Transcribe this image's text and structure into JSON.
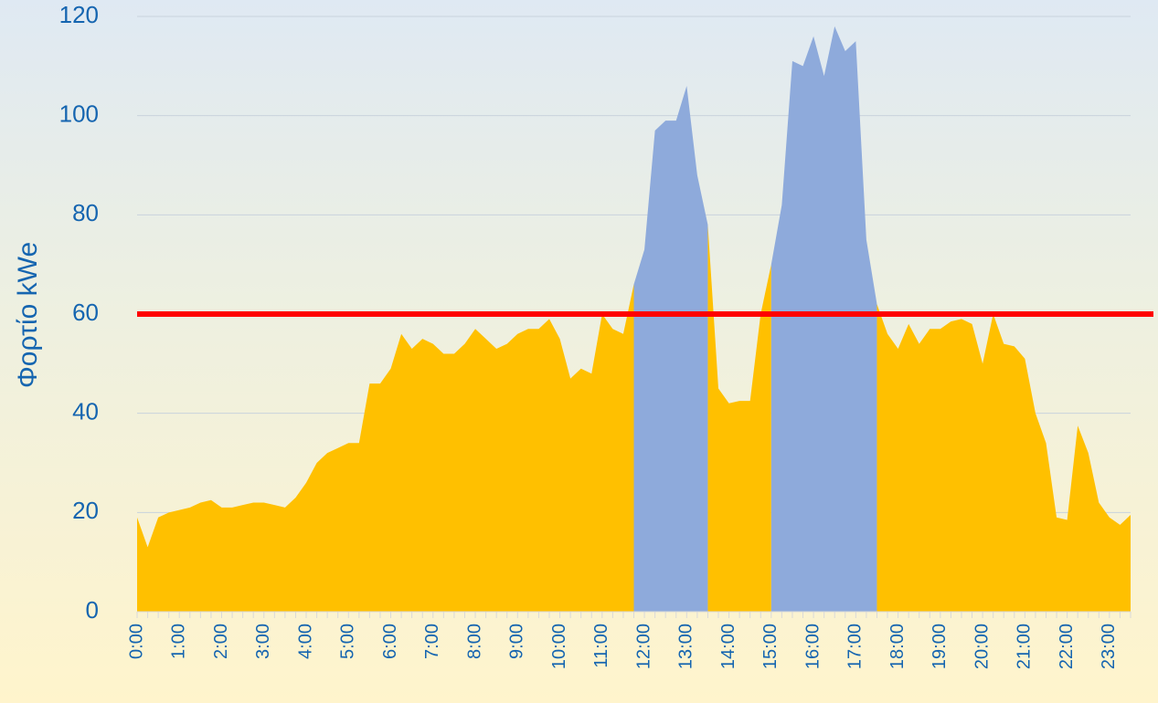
{
  "chart_data": {
    "type": "area",
    "y_label": "Φορτίο kWe",
    "categories": [
      "0:00",
      null,
      null,
      null,
      "1:00",
      null,
      null,
      null,
      "2:00",
      null,
      null,
      null,
      "3:00",
      null,
      null,
      null,
      "4:00",
      null,
      null,
      null,
      "5:00",
      null,
      null,
      null,
      "6:00",
      null,
      null,
      null,
      "7:00",
      null,
      null,
      null,
      "8:00",
      null,
      null,
      null,
      "9:00",
      null,
      null,
      null,
      "10:00",
      null,
      null,
      null,
      "11:00",
      null,
      null,
      null,
      "12:00",
      null,
      null,
      null,
      "13:00",
      null,
      null,
      null,
      "14:00",
      null,
      null,
      null,
      "15:00",
      null,
      null,
      null,
      "16:00",
      null,
      null,
      null,
      "17:00",
      null,
      null,
      null,
      "18:00",
      null,
      null,
      null,
      "19:00",
      null,
      null,
      null,
      "20:00",
      null,
      null,
      null,
      "21:00",
      null,
      null,
      null,
      "22:00",
      null,
      null,
      null,
      "23:00",
      null,
      null
    ],
    "series": [
      {
        "color": "#ffc000",
        "values": [
          19,
          13,
          19,
          20,
          20.5,
          21,
          22,
          22.5,
          21,
          21,
          21.5,
          22,
          22,
          21.5,
          21,
          23,
          26,
          30,
          32,
          33,
          34,
          34,
          46,
          46,
          49,
          56,
          53,
          55,
          54,
          52,
          52,
          54,
          57,
          55,
          53,
          54,
          56,
          57,
          57,
          59,
          55,
          47,
          49,
          48,
          60,
          57,
          56,
          66,
          null,
          null,
          null,
          null,
          null,
          null,
          78,
          45,
          42,
          42.5,
          42.5,
          60,
          70,
          null,
          null,
          null,
          null,
          null,
          null,
          null,
          null,
          null,
          62,
          56,
          53,
          58,
          54,
          57,
          57,
          58.5,
          59,
          58,
          50,
          60,
          54,
          53.5,
          51,
          40,
          34,
          19,
          18.5,
          37.5,
          32,
          22,
          19,
          17.5,
          19.5
        ]
      },
      {
        "color": "#8eaadb",
        "values": [
          null,
          null,
          null,
          null,
          null,
          null,
          null,
          null,
          null,
          null,
          null,
          null,
          null,
          null,
          null,
          null,
          null,
          null,
          null,
          null,
          null,
          null,
          null,
          null,
          null,
          null,
          null,
          null,
          null,
          null,
          null,
          null,
          null,
          null,
          null,
          null,
          null,
          null,
          null,
          null,
          null,
          null,
          null,
          null,
          null,
          null,
          null,
          66,
          73,
          97,
          99,
          99,
          106,
          88,
          78,
          null,
          null,
          null,
          null,
          null,
          70,
          82,
          111,
          110,
          116,
          108,
          118,
          113,
          115,
          75,
          62,
          null,
          null,
          null,
          null,
          null,
          null,
          null,
          null,
          null,
          null,
          null,
          null,
          null,
          null,
          null,
          null,
          null,
          null,
          null,
          null,
          null,
          null,
          null,
          null
        ]
      }
    ],
    "threshold": 60,
    "threshold_color": "#ff0000",
    "ylim": [
      0,
      120
    ],
    "yticks": [
      0,
      20,
      40,
      60,
      80,
      100,
      120
    ],
    "grid": true
  }
}
